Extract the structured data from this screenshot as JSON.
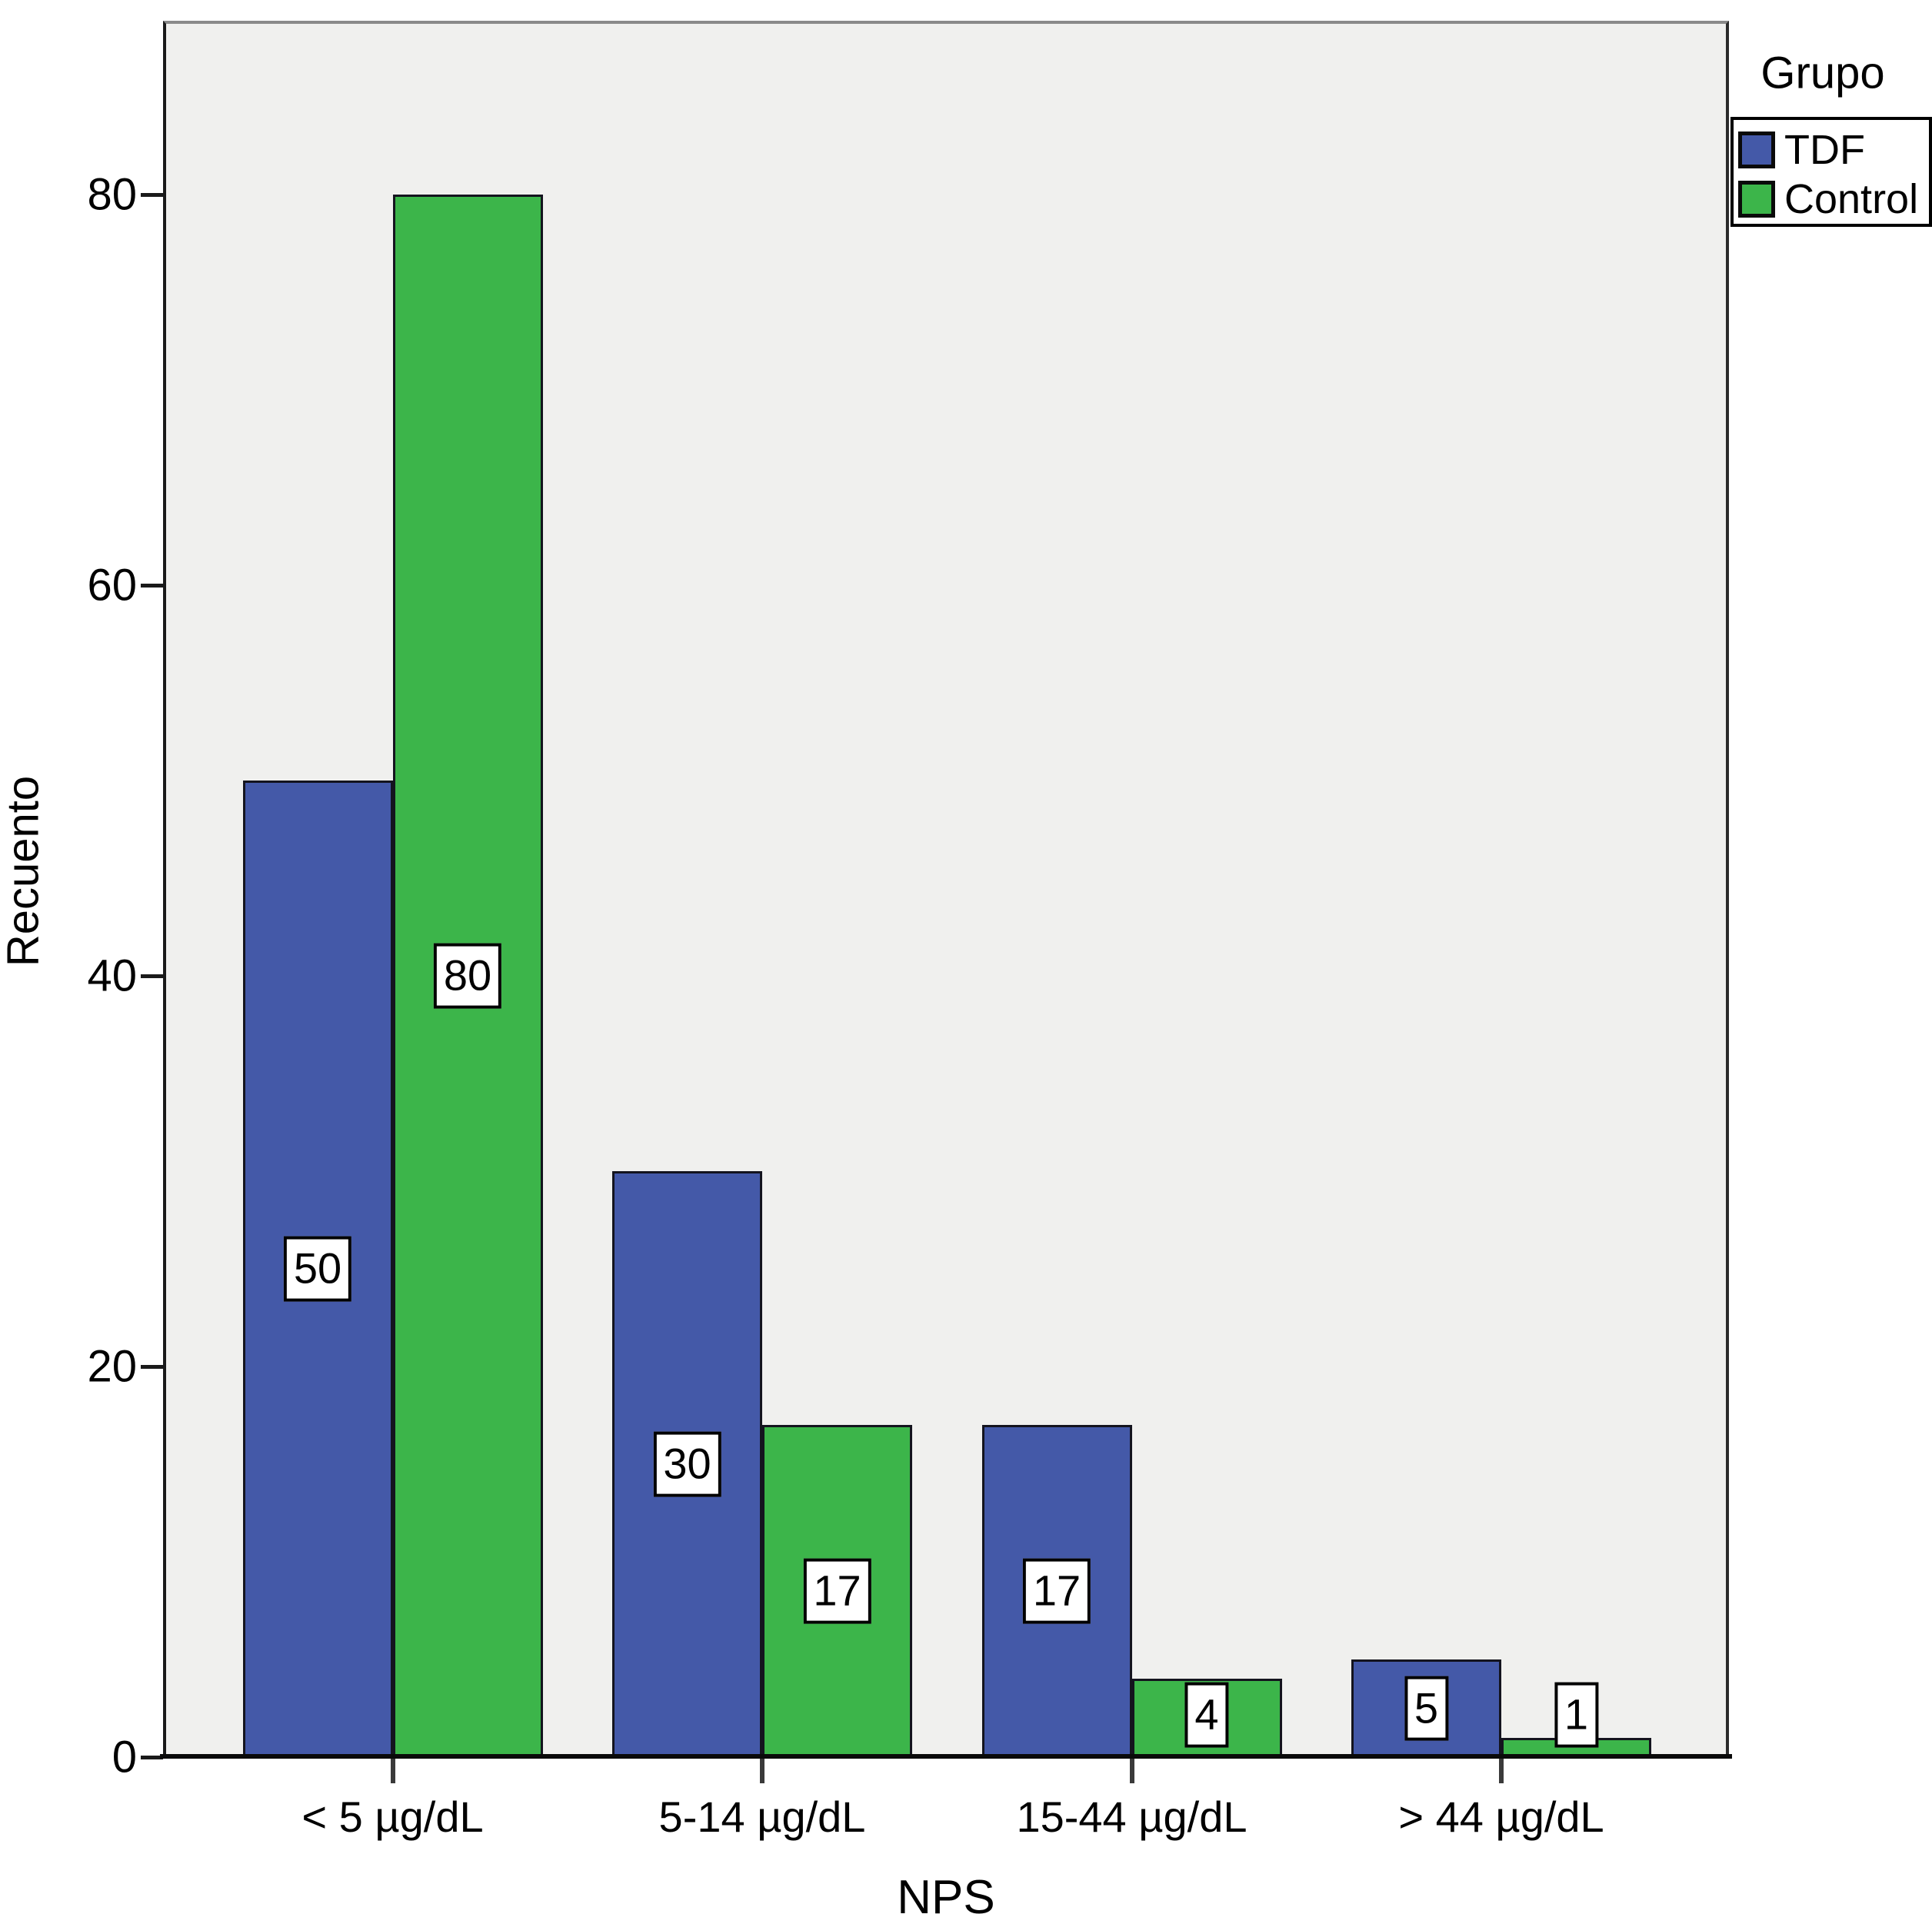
{
  "chart_data": {
    "type": "bar",
    "title": "",
    "categories": [
      "< 5 µg/dL",
      "5-14 µg/dL",
      "15-44 µg/dL",
      "> 44 µg/dL"
    ],
    "series": [
      {
        "name": "TDF",
        "color": "#4459A8",
        "values": [
          50,
          30,
          17,
          5
        ]
      },
      {
        "name": "Control",
        "color": "#3CB54A",
        "values": [
          80,
          17,
          4,
          1
        ]
      }
    ],
    "bar_value_labels": {
      "TDF": [
        "50",
        "30",
        "17",
        "5"
      ],
      "Control": [
        "80",
        "17",
        "4",
        "1"
      ]
    },
    "xlabel": "NPS",
    "ylabel": "Recuento",
    "ylim": [
      0,
      88
    ],
    "yticks": [
      "0",
      "20",
      "40",
      "60",
      "80"
    ],
    "ytick_values": [
      0,
      20,
      40,
      60,
      80
    ],
    "legend_title": "Grupo",
    "legend_position": "top-right",
    "grid": false,
    "plot_bg_color": "#F0F0EE",
    "figure_bg_color": "#FFFFFF"
  }
}
